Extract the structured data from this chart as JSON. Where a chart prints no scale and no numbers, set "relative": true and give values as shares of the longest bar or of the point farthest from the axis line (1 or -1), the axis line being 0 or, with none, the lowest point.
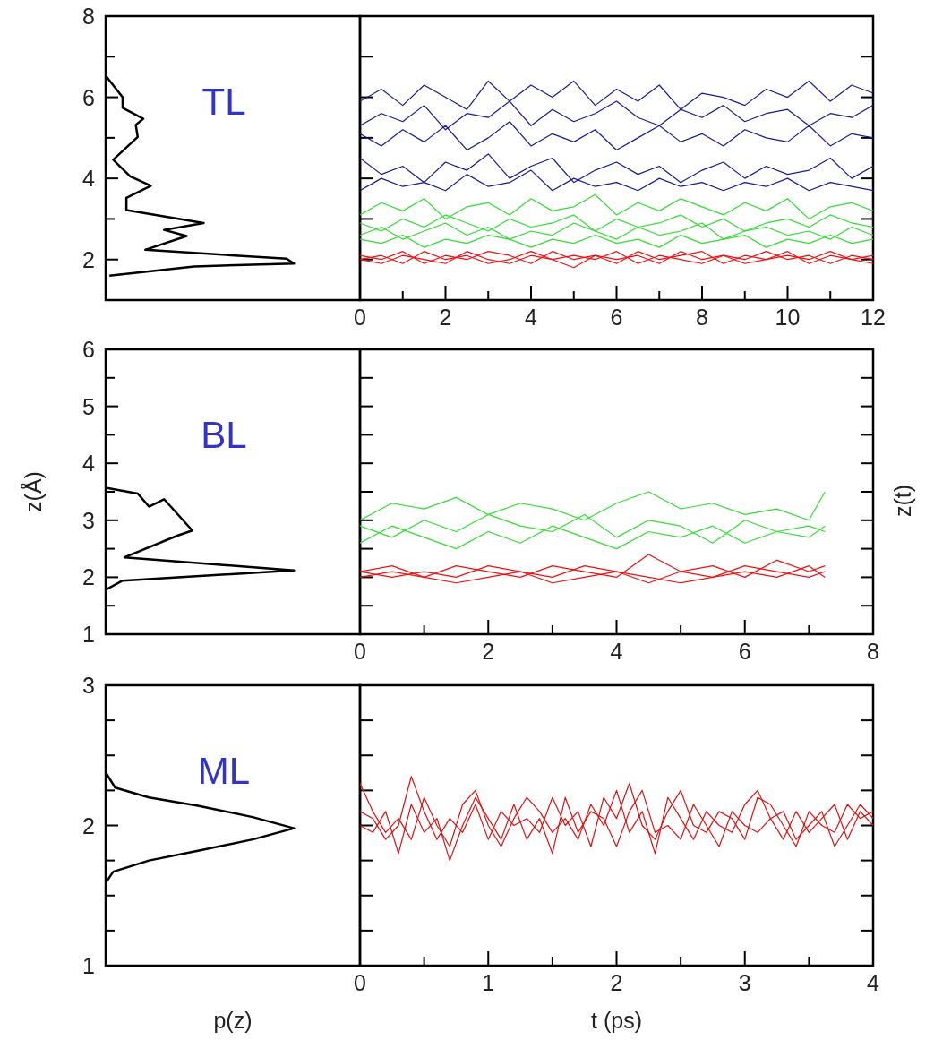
{
  "chart_data": [
    {
      "type": "line",
      "orientation": "horizontal",
      "relative": true,
      "color": "#000000",
      "x": [
        6.53,
        6.0,
        5.74,
        5.47,
        5.32,
        5.02,
        4.46,
        4.05,
        3.82,
        3.52,
        3.22,
        2.9,
        2.73,
        2.58,
        2.24,
        2.02,
        1.9,
        1.83,
        1.6
      ],
      "values": [
        0,
        0.09,
        0.09,
        0.2,
        0.16,
        0.17,
        0.04,
        0.13,
        0.24,
        0.11,
        0.11,
        0.52,
        0.31,
        0.43,
        0.21,
        0.96,
        1.0,
        0.47,
        0.02
      ],
      "ylim": [
        1,
        8
      ],
      "yticks": [
        {
          "value": 1,
          "label": null
        },
        2,
        {
          "value": 3,
          "label": null
        },
        4,
        {
          "value": 5,
          "label": null
        },
        6,
        {
          "value": 7,
          "label": null
        },
        8
      ],
      "tick_labels": "y",
      "annotations": [
        "TL"
      ]
    },
    {
      "type": "line",
      "xlim": [
        0,
        12
      ],
      "xticks": [
        0,
        {
          "value": 1,
          "label": null
        },
        2,
        {
          "value": 3,
          "label": null
        },
        4,
        {
          "value": 5,
          "label": null
        },
        6,
        {
          "value": 7,
          "label": null
        },
        8,
        {
          "value": 9,
          "label": null
        },
        10,
        {
          "value": 11,
          "label": null
        },
        12
      ],
      "ylim": [
        1,
        8
      ],
      "yticks": [
        {
          "value": 1,
          "label": null
        },
        {
          "value": 2,
          "label": null
        },
        {
          "value": 3,
          "label": null
        },
        {
          "value": 4,
          "label": null
        },
        {
          "value": 5,
          "label": null
        },
        {
          "value": 6,
          "label": null
        },
        {
          "value": 7,
          "label": null
        },
        {
          "value": 8,
          "label": null
        }
      ],
      "tick_labels": "x",
      "x": [
        0,
        0.5,
        1,
        1.5,
        2,
        2.5,
        3,
        3.5,
        4,
        4.5,
        5,
        5.5,
        6,
        6.5,
        7,
        7.5,
        8,
        8.5,
        9,
        9.5,
        10,
        10.5,
        11,
        11.5,
        12
      ],
      "series": [
        {
          "color": "#1a1a9a",
          "values": [
            5.9,
            6.2,
            5.8,
            6.3,
            6.0,
            5.7,
            6.4,
            5.9,
            6.3,
            6.0,
            6.4,
            5.8,
            6.2,
            5.9,
            6.3,
            5.7,
            6.1,
            6.0,
            5.8,
            6.2,
            6.0,
            6.4,
            5.9,
            6.3,
            6.1
          ]
        },
        {
          "color": "#1a1a9a",
          "values": [
            5.3,
            5.6,
            5.4,
            5.8,
            5.2,
            5.6,
            5.5,
            5.9,
            5.3,
            5.7,
            5.4,
            5.6,
            5.9,
            5.5,
            5.3,
            5.7,
            5.5,
            5.8,
            5.4,
            5.6,
            5.7,
            5.3,
            5.6,
            5.5,
            5.8
          ]
        },
        {
          "color": "#1a1a9a",
          "values": [
            5.1,
            4.8,
            5.2,
            4.9,
            5.3,
            4.7,
            5.0,
            5.4,
            4.8,
            5.1,
            4.9,
            5.2,
            4.7,
            5.0,
            5.3,
            4.9,
            5.1,
            4.8,
            5.2,
            5.0,
            4.9,
            5.3,
            4.8,
            5.1,
            5.0
          ]
        },
        {
          "color": "#1a1a9a",
          "values": [
            4.5,
            4.1,
            4.3,
            3.9,
            4.4,
            4.2,
            4.6,
            4.0,
            4.3,
            4.5,
            3.9,
            4.2,
            4.4,
            4.1,
            4.3,
            3.9,
            4.2,
            4.4,
            4.0,
            4.3,
            4.1,
            4.2,
            4.5,
            4.0,
            4.3
          ]
        },
        {
          "color": "#1a1a9a",
          "values": [
            3.7,
            4.0,
            3.8,
            3.9,
            3.7,
            4.1,
            3.8,
            3.9,
            4.2,
            3.7,
            4.0,
            3.8,
            3.9,
            3.7,
            4.0,
            3.8,
            3.9,
            3.7,
            3.9,
            3.8,
            4.0,
            3.7,
            3.9,
            3.8,
            3.7
          ]
        },
        {
          "color": "#33dd33",
          "values": [
            3.1,
            3.4,
            3.2,
            3.5,
            3.0,
            3.3,
            3.4,
            3.1,
            3.5,
            3.2,
            3.3,
            3.6,
            3.1,
            3.4,
            3.2,
            3.5,
            3.3,
            3.1,
            3.4,
            3.2,
            3.5,
            3.0,
            3.3,
            3.4,
            3.2
          ]
        },
        {
          "color": "#33dd33",
          "values": [
            2.9,
            2.7,
            3.0,
            2.8,
            3.1,
            2.9,
            2.7,
            3.0,
            2.8,
            2.9,
            3.1,
            2.7,
            3.0,
            2.8,
            2.9,
            3.1,
            2.8,
            3.0,
            2.7,
            2.9,
            3.0,
            2.8,
            3.1,
            2.9,
            2.8
          ]
        },
        {
          "color": "#33dd33",
          "values": [
            2.6,
            2.8,
            2.5,
            2.7,
            2.9,
            2.6,
            2.8,
            2.5,
            2.7,
            2.6,
            2.9,
            2.7,
            2.5,
            2.8,
            2.6,
            2.7,
            2.9,
            2.5,
            2.7,
            2.8,
            2.6,
            2.7,
            2.5,
            2.8,
            2.6
          ]
        },
        {
          "color": "#33dd33",
          "values": [
            2.5,
            2.4,
            2.6,
            2.3,
            2.5,
            2.4,
            2.6,
            2.5,
            2.3,
            2.5,
            2.4,
            2.6,
            2.4,
            2.5,
            2.3,
            2.6,
            2.4,
            2.5,
            2.6,
            2.3,
            2.5,
            2.4,
            2.6,
            2.4,
            2.5
          ]
        },
        {
          "color": "#ee1111",
          "values": [
            2.1,
            2.0,
            2.2,
            1.9,
            2.1,
            2.0,
            2.2,
            2.1,
            1.9,
            2.2,
            2.0,
            2.1,
            1.9,
            2.2,
            2.0,
            2.1,
            2.2,
            1.9,
            2.1,
            2.0,
            2.2,
            1.9,
            2.1,
            2.0,
            2.1
          ]
        },
        {
          "color": "#ee1111",
          "values": [
            2.0,
            2.1,
            1.9,
            2.2,
            2.0,
            2.1,
            1.9,
            2.0,
            2.2,
            2.0,
            2.1,
            2.0,
            2.2,
            1.9,
            2.1,
            2.0,
            1.9,
            2.1,
            2.0,
            2.2,
            2.0,
            2.1,
            1.9,
            2.1,
            2.0
          ]
        },
        {
          "color": "#ee1111",
          "values": [
            2.0,
            1.9,
            2.1,
            2.0,
            1.9,
            2.2,
            2.0,
            1.9,
            2.1,
            2.0,
            1.8,
            2.1,
            2.0,
            2.1,
            1.9,
            2.2,
            2.0,
            2.1,
            1.9,
            2.0,
            2.1,
            2.0,
            2.2,
            2.0,
            1.9
          ]
        }
      ]
    },
    {
      "type": "line",
      "orientation": "horizontal",
      "relative": true,
      "color": "#000000",
      "ylabel": "z(Å)",
      "x": [
        3.57,
        3.47,
        3.24,
        3.37,
        2.82,
        2.73,
        2.35,
        2.12,
        1.94,
        1.78
      ],
      "values": [
        0,
        0.17,
        0.23,
        0.31,
        0.46,
        0.38,
        0.1,
        1.0,
        0.09,
        0
      ],
      "ylim": [
        1,
        6
      ],
      "yticks": [
        1,
        {
          "value": 1.5,
          "label": null
        },
        2,
        {
          "value": 2.5,
          "label": null
        },
        3,
        {
          "value": 3.5,
          "label": null
        },
        4,
        {
          "value": 4.5,
          "label": null
        },
        5,
        {
          "value": 5.5,
          "label": null
        },
        6
      ],
      "tick_labels": "y",
      "annotations": [
        "BL"
      ]
    },
    {
      "type": "line",
      "y2label": "z(t)",
      "xlim": [
        0,
        8
      ],
      "xticks": [
        0,
        {
          "value": 1,
          "label": null
        },
        2,
        {
          "value": 3,
          "label": null
        },
        4,
        {
          "value": 5,
          "label": null
        },
        6,
        {
          "value": 7,
          "label": null
        },
        8
      ],
      "ylim": [
        1,
        6
      ],
      "yticks": [
        {
          "value": 1,
          "label": null
        },
        {
          "value": 1.5,
          "label": null
        },
        {
          "value": 2,
          "label": null
        },
        {
          "value": 2.5,
          "label": null
        },
        {
          "value": 3,
          "label": null
        },
        {
          "value": 3.5,
          "label": null
        },
        {
          "value": 4,
          "label": null
        },
        {
          "value": 4.5,
          "label": null
        },
        {
          "value": 5,
          "label": null
        },
        {
          "value": 5.5,
          "label": null
        },
        {
          "value": 6,
          "label": null
        }
      ],
      "tick_labels": "x",
      "x": [
        0,
        0.5,
        1,
        1.5,
        2,
        2.5,
        3,
        3.5,
        4,
        4.5,
        5,
        5.5,
        6,
        6.5,
        7,
        7.25
      ],
      "series": [
        {
          "color": "#33dd33",
          "values": [
            3.0,
            3.3,
            3.2,
            3.4,
            3.1,
            3.3,
            3.2,
            3.0,
            3.3,
            3.5,
            3.2,
            3.3,
            3.1,
            3.2,
            3.0,
            3.5
          ]
        },
        {
          "color": "#33dd33",
          "values": [
            2.9,
            2.7,
            3.0,
            2.8,
            3.1,
            2.9,
            2.8,
            3.1,
            2.7,
            3.0,
            2.9,
            2.6,
            3.0,
            2.8,
            2.9,
            2.8
          ]
        },
        {
          "color": "#33dd33",
          "values": [
            2.6,
            2.9,
            2.7,
            2.5,
            2.8,
            2.6,
            2.9,
            2.7,
            2.5,
            2.8,
            2.7,
            2.9,
            2.6,
            2.8,
            2.7,
            2.9
          ]
        },
        {
          "color": "#ee1111",
          "values": [
            2.1,
            2.2,
            2.0,
            2.2,
            2.1,
            2.0,
            2.2,
            2.1,
            2.0,
            2.4,
            2.1,
            2.2,
            2.0,
            2.3,
            2.1,
            2.2
          ]
        },
        {
          "color": "#ee1111",
          "values": [
            2.1,
            2.0,
            2.1,
            2.0,
            2.2,
            2.1,
            2.0,
            2.2,
            2.1,
            1.9,
            2.1,
            2.0,
            2.2,
            2.1,
            2.0,
            2.1
          ]
        },
        {
          "color": "#ee1111",
          "values": [
            2.0,
            2.1,
            2.0,
            1.9,
            2.0,
            2.1,
            1.9,
            2.0,
            2.1,
            2.0,
            1.9,
            2.0,
            2.1,
            2.0,
            2.2,
            2.0
          ]
        }
      ]
    },
    {
      "type": "line",
      "orientation": "horizontal",
      "relative": true,
      "color": "#000000",
      "xlabel": "p(z)",
      "x": [
        2.38,
        2.27,
        2.2,
        2.14,
        2.06,
        1.98,
        1.9,
        1.82,
        1.75,
        1.67,
        1.59
      ],
      "values": [
        0,
        0.05,
        0.23,
        0.49,
        0.78,
        1.0,
        0.78,
        0.49,
        0.23,
        0.04,
        0
      ],
      "ylim": [
        1,
        3
      ],
      "yticks": [
        1,
        {
          "value": 1.25,
          "label": null
        },
        {
          "value": 1.5,
          "label": null
        },
        {
          "value": 1.75,
          "label": null
        },
        2,
        {
          "value": 2.25,
          "label": null
        },
        {
          "value": 2.5,
          "label": null
        },
        {
          "value": 2.75,
          "label": null
        },
        3
      ],
      "tick_labels": "y",
      "annotations": [
        "ML"
      ]
    },
    {
      "type": "line",
      "xlabel": "t (ps)",
      "xlim": [
        0,
        4
      ],
      "xticks": [
        0,
        {
          "value": 0.5,
          "label": null
        },
        1,
        {
          "value": 1.5,
          "label": null
        },
        2,
        {
          "value": 2.5,
          "label": null
        },
        3,
        {
          "value": 3.5,
          "label": null
        },
        4
      ],
      "ylim": [
        1,
        3
      ],
      "yticks": [
        {
          "value": 1,
          "label": null
        },
        {
          "value": 1.25,
          "label": null
        },
        {
          "value": 1.5,
          "label": null
        },
        {
          "value": 1.75,
          "label": null
        },
        {
          "value": 2,
          "label": null
        },
        {
          "value": 2.25,
          "label": null
        },
        {
          "value": 2.5,
          "label": null
        },
        {
          "value": 2.75,
          "label": null
        },
        {
          "value": 3,
          "label": null
        }
      ],
      "tick_labels": "x",
      "x": [
        0,
        0.1,
        0.2,
        0.3,
        0.4,
        0.5,
        0.6,
        0.7,
        0.8,
        0.9,
        1,
        1.1,
        1.2,
        1.3,
        1.4,
        1.5,
        1.6,
        1.7,
        1.8,
        1.9,
        2,
        2.1,
        2.2,
        2.3,
        2.4,
        2.5,
        2.6,
        2.7,
        2.8,
        2.9,
        3,
        3.1,
        3.2,
        3.3,
        3.4,
        3.5,
        3.6,
        3.7,
        3.8,
        3.9,
        4
      ],
      "series": [
        {
          "color": "#dd1111",
          "values": [
            2.3,
            2.1,
            1.95,
            2.05,
            1.9,
            2.2,
            2.0,
            1.85,
            2.15,
            2.25,
            2.0,
            1.85,
            2.05,
            2.2,
            2.1,
            1.95,
            2.05,
            1.9,
            2.15,
            2.0,
            2.25,
            1.95,
            2.1,
            1.8,
            2.2,
            2.05,
            1.9,
            2.1,
            2.0,
            1.95,
            2.15,
            2.25,
            2.05,
            1.9,
            2.1,
            1.95,
            2.05,
            2.15,
            1.9,
            2.1,
            2.0
          ]
        },
        {
          "color": "#dd1111",
          "values": [
            2.1,
            2.05,
            1.9,
            2.0,
            2.35,
            2.1,
            1.9,
            2.05,
            1.95,
            2.15,
            1.9,
            2.1,
            2.0,
            2.05,
            1.95,
            2.2,
            2.0,
            2.1,
            1.85,
            2.2,
            2.05,
            2.3,
            2.0,
            1.9,
            2.1,
            2.25,
            2.0,
            1.95,
            2.1,
            2.05,
            1.9,
            2.2,
            2.15,
            2.0,
            1.85,
            2.1,
            2.0,
            1.95,
            2.15,
            2.05,
            2.1
          ]
        },
        {
          "color": "#dd1111",
          "values": [
            2.0,
            1.95,
            2.1,
            1.8,
            2.15,
            1.95,
            2.05,
            1.75,
            2.0,
            2.2,
            2.05,
            1.9,
            2.15,
            1.9,
            2.05,
            1.8,
            2.2,
            1.95,
            2.1,
            2.05,
            1.85,
            2.1,
            2.25,
            1.95,
            2.0,
            1.9,
            2.15,
            2.0,
            1.85,
            2.1,
            2.0,
            1.95,
            2.05,
            2.1,
            1.9,
            2.0,
            2.1,
            1.85,
            2.0,
            2.15,
            2.05
          ]
        }
      ]
    }
  ]
}
